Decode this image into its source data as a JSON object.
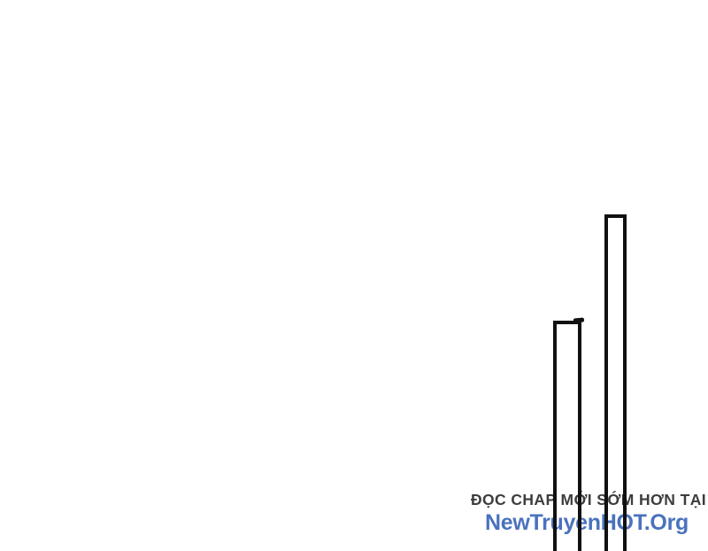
{
  "page": {
    "background_color": "#ffffff",
    "ink_color": "#111111"
  },
  "watermark": {
    "line1": "ĐỌC CHAP MỚI SỚM HƠN TẠI",
    "line1_color": "#3d3d3d",
    "line2": "NewTruyenHOT.Org",
    "line2_color": "#4a72bd"
  }
}
